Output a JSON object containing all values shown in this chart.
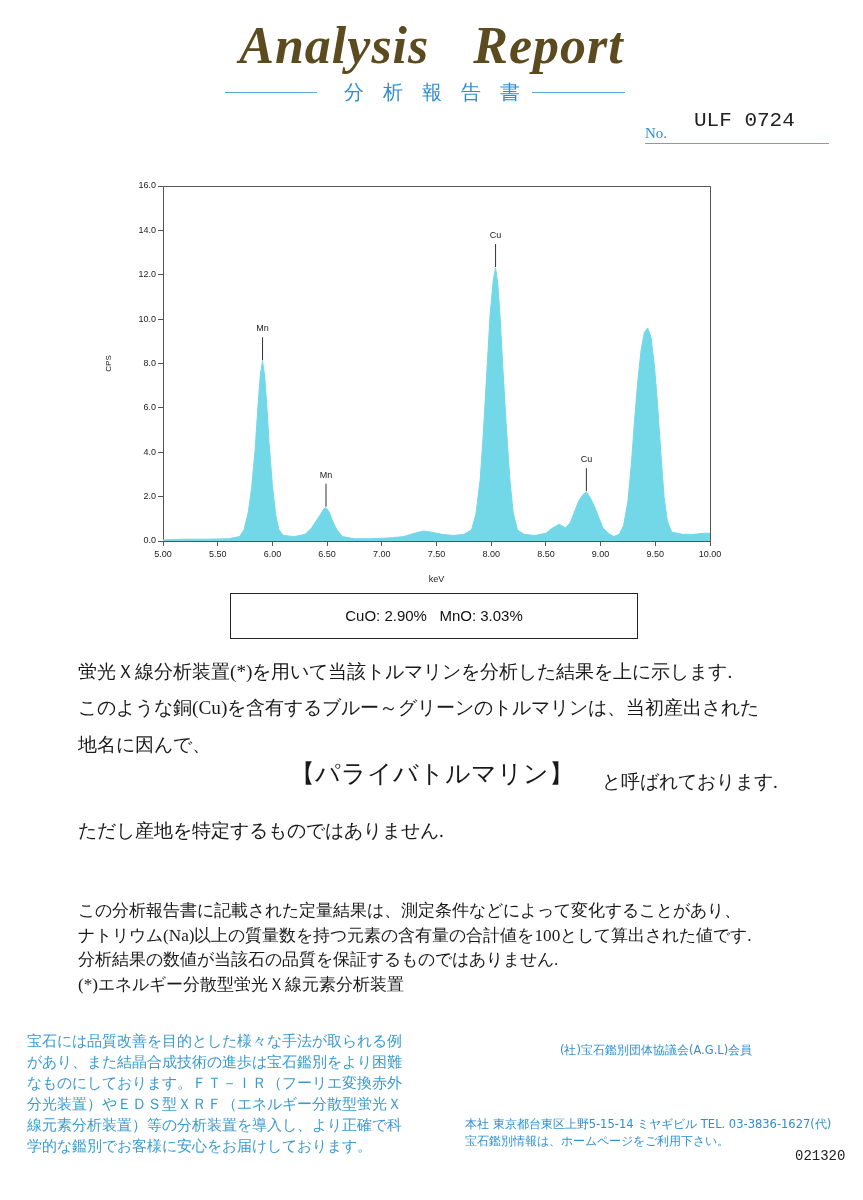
{
  "chart_data": {
    "type": "area",
    "title": "Analysis Report",
    "subtitle": "分析報告書",
    "xlabel": "keV",
    "ylabel": "CPS",
    "x": [
      5.0,
      5.2,
      5.4,
      5.6,
      5.7,
      5.74,
      5.78,
      5.81,
      5.84,
      5.87,
      5.89,
      5.91,
      5.93,
      5.95,
      5.97,
      6.0,
      6.03,
      6.06,
      6.1,
      6.2,
      6.3,
      6.36,
      6.4,
      6.44,
      6.47,
      6.49,
      6.52,
      6.55,
      6.59,
      6.64,
      6.75,
      6.9,
      7.0,
      7.1,
      7.2,
      7.3,
      7.38,
      7.45,
      7.55,
      7.65,
      7.75,
      7.82,
      7.86,
      7.9,
      7.93,
      7.96,
      7.99,
      8.02,
      8.04,
      8.06,
      8.08,
      8.11,
      8.14,
      8.17,
      8.2,
      8.24,
      8.3,
      8.4,
      8.5,
      8.55,
      8.62,
      8.68,
      8.72,
      8.76,
      8.8,
      8.84,
      8.87,
      8.9,
      8.94,
      8.98,
      9.02,
      9.07,
      9.12,
      9.17,
      9.21,
      9.25,
      9.28,
      9.31,
      9.34,
      9.37,
      9.4,
      9.43,
      9.46,
      9.49,
      9.52,
      9.55,
      9.58,
      9.61,
      9.65,
      9.75,
      9.85,
      9.95,
      10.0
    ],
    "values": [
      0.05,
      0.08,
      0.08,
      0.1,
      0.2,
      0.5,
      1.3,
      2.4,
      4.0,
      6.2,
      7.5,
      8.1,
      7.4,
      6.0,
      4.4,
      2.5,
      1.2,
      0.5,
      0.25,
      0.2,
      0.3,
      0.6,
      0.9,
      1.2,
      1.45,
      1.5,
      1.3,
      0.9,
      0.5,
      0.2,
      0.1,
      0.1,
      0.12,
      0.15,
      0.2,
      0.35,
      0.45,
      0.4,
      0.3,
      0.25,
      0.3,
      0.5,
      1.2,
      2.8,
      5.0,
      7.6,
      10.2,
      11.8,
      12.3,
      11.6,
      10.2,
      7.5,
      5.0,
      2.8,
      1.3,
      0.5,
      0.3,
      0.25,
      0.35,
      0.55,
      0.75,
      0.6,
      0.8,
      1.3,
      1.8,
      2.1,
      2.2,
      2.0,
      1.6,
      1.1,
      0.6,
      0.35,
      0.2,
      0.3,
      0.7,
      1.8,
      3.4,
      5.4,
      7.2,
      8.6,
      9.4,
      9.6,
      9.2,
      8.0,
      6.2,
      4.0,
      2.0,
      0.9,
      0.4,
      0.3,
      0.3,
      0.35,
      0.35
    ],
    "color": "#72d8e8",
    "xlim": [
      5,
      10
    ],
    "ylim": [
      0,
      16
    ],
    "xticks": [
      {
        "value": 5,
        "label": "5.00"
      },
      {
        "value": 5.5,
        "label": "5.50"
      },
      {
        "value": 6,
        "label": "6.00"
      },
      {
        "value": 6.5,
        "label": "6.50"
      },
      {
        "value": 7,
        "label": "7.00"
      },
      {
        "value": 7.5,
        "label": "7.50"
      },
      {
        "value": 8,
        "label": "8.00"
      },
      {
        "value": 8.5,
        "label": "8.50"
      },
      {
        "value": 9,
        "label": "9.00"
      },
      {
        "value": 9.5,
        "label": "9.50"
      },
      {
        "value": 10,
        "label": "10.00"
      }
    ],
    "yticks": [
      {
        "value": 0,
        "label": "0.0"
      },
      {
        "value": 2,
        "label": "2.0"
      },
      {
        "value": 4,
        "label": "4.0"
      },
      {
        "value": 6,
        "label": "6.0"
      },
      {
        "value": 8,
        "label": "8.0"
      },
      {
        "value": 10,
        "label": "10.0"
      },
      {
        "value": 12,
        "label": "12.0"
      },
      {
        "value": 14,
        "label": "14.0"
      },
      {
        "value": 16,
        "label": "16.0"
      }
    ],
    "annotations": [
      "No.",
      "ULF 0724",
      {
        "text": "Mn",
        "x": 5.91,
        "y": 8.1
      },
      {
        "text": "Mn",
        "x": 6.49,
        "y": 1.5
      },
      {
        "text": "Cu",
        "x": 8.04,
        "y": 12.3
      },
      {
        "text": "Cu",
        "x": 8.87,
        "y": 2.2
      },
      "CuO: 2.90%   MnO: 3.03%",
      "蛍光Ｘ線分析装置(*)を用いて当該トルマリンを分析した結果を上に示します.",
      "このような銅(Cu)を含有するブルー～グリーンのトルマリンは、当初産出された",
      "地名に因んで、",
      "【パライバトルマリン】",
      "と呼ばれております.",
      "ただし産地を特定するものではありません.",
      "この分析報告書に記載された定量結果は、測定条件などによって変化することがあり、",
      "ナトリウム(Na)以上の質量数を持つ元素の含有量の合計値を100として算出された値です.",
      "分析結果の数値が当該石の品質を保証するものではありません.",
      "(*)エネルギー分散型蛍光Ｘ線元素分析装置",
      "宝石には品質改善を目的とした様々な手法が取られる例があり、また結晶合成技術の進歩は宝石鑑別をより困難なものにしております。ＦＴ－ＩＲ（フーリエ変換赤外分光装置）やＥＤＳ型ＸＲＦ（エネルギー分散型蛍光Ｘ線元素分析装置）等の分析装置を導入し、より正確で科学的な鑑別でお客様に安心をお届けしております。",
      "(社)宝石鑑別団体協議会(A.G.L)会員",
      "本社 東京都台東区上野5-15-14 ミヤギビル TEL. 03-3836-1627(代)",
      "宝石鑑別情報は、ホームページをご利用下さい。",
      "021320"
    ]
  }
}
